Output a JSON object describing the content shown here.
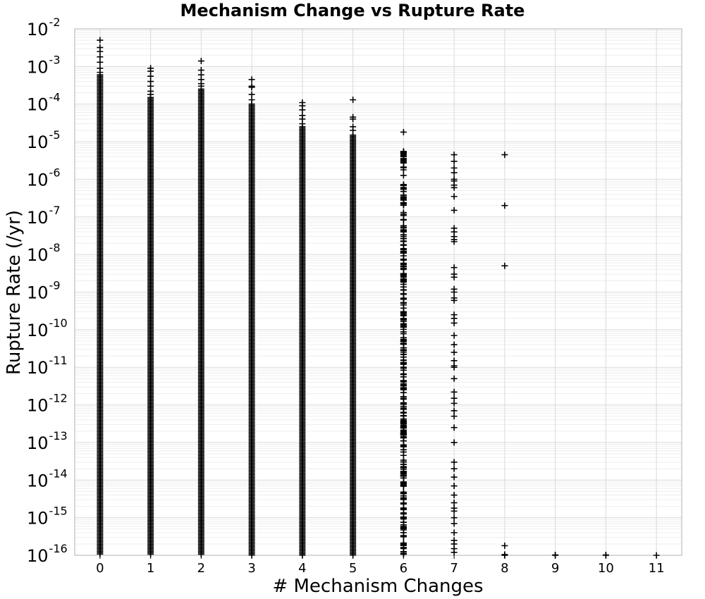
{
  "chart_data": {
    "type": "scatter",
    "title": "Mechanism Change vs Rupture Rate",
    "xlabel": "# Mechanism Changes",
    "ylabel": "Rupture Rate (/yr)",
    "xlim": [
      -0.5,
      11.5
    ],
    "ylim": [
      1e-16,
      0.01
    ],
    "y_scale": "log",
    "x_ticks": [
      0,
      1,
      2,
      3,
      4,
      5,
      6,
      7,
      8,
      9,
      10,
      11
    ],
    "y_tick_labels": [
      {
        "base": "10",
        "exp": "-2"
      },
      {
        "base": "10",
        "exp": "-3"
      },
      {
        "base": "10",
        "exp": "-4"
      },
      {
        "base": "10",
        "exp": "-5"
      },
      {
        "base": "10",
        "exp": "-6"
      },
      {
        "base": "10",
        "exp": "-7"
      },
      {
        "base": "10",
        "exp": "-8"
      },
      {
        "base": "10",
        "exp": "-9"
      },
      {
        "base": "10",
        "exp": "-10"
      },
      {
        "base": "10",
        "exp": "-11"
      },
      {
        "base": "10",
        "exp": "-12"
      },
      {
        "base": "10",
        "exp": "-13"
      },
      {
        "base": "10",
        "exp": "-14"
      },
      {
        "base": "10",
        "exp": "-15"
      },
      {
        "base": "10",
        "exp": "-16"
      }
    ],
    "grid": true,
    "marker": "plus",
    "marker_color": "#000000",
    "columns": [
      {
        "x": 0,
        "dense_range": [
          1e-16,
          0.0006
        ],
        "outliers": [
          0.005,
          0.0032,
          0.0025,
          0.0018,
          0.0013,
          0.0009,
          0.0007
        ]
      },
      {
        "x": 1,
        "dense_range": [
          1e-16,
          0.00015
        ],
        "outliers": [
          0.0009,
          0.00075,
          0.00055,
          0.0004,
          0.0003,
          0.00022,
          0.00018
        ]
      },
      {
        "x": 2,
        "dense_range": [
          1e-16,
          0.00025
        ],
        "outliers": [
          0.0014,
          0.0008,
          0.0006,
          0.00045,
          0.00035,
          0.0003
        ]
      },
      {
        "x": 3,
        "dense_range": [
          1e-16,
          0.0001
        ],
        "outliers": [
          0.00045,
          0.0003,
          0.00028,
          0.00018,
          0.00013
        ]
      },
      {
        "x": 4,
        "dense_range": [
          1e-16,
          2.5e-05
        ],
        "outliers": [
          0.00011,
          9e-05,
          7e-05,
          5e-05,
          4e-05,
          3e-05
        ]
      },
      {
        "x": 5,
        "dense_range": [
          1e-16,
          1.5e-05
        ],
        "outliers": [
          0.00013,
          4.5e-05,
          4e-05,
          2.5e-05,
          2e-05
        ]
      },
      {
        "x": 6,
        "sparse_range": [
          1e-16,
          6e-06
        ],
        "count": 320,
        "outliers": [
          1.8e-05,
          5.5e-06,
          4.5e-06,
          4e-06,
          3e-06
        ]
      },
      {
        "x": 7,
        "values": [
          4.5e-06,
          3e-06,
          2e-06,
          1.5e-06,
          1e-06,
          9e-07,
          7e-07,
          6e-07,
          3.5e-07,
          1.5e-07,
          5e-08,
          4e-08,
          3e-08,
          2.5e-08,
          2.2e-08,
          4.5e-09,
          3e-09,
          2.5e-09,
          1.2e-09,
          1e-09,
          7e-10,
          6e-10,
          2.5e-10,
          2e-10,
          1.5e-10,
          7e-11,
          4e-11,
          2.5e-11,
          1.5e-11,
          1.1e-11,
          1e-11,
          5e-12,
          2.2e-12,
          1.5e-12,
          1.1e-12,
          7e-13,
          5e-13,
          2.5e-13,
          1e-13,
          3e-14,
          2e-14,
          1.2e-14,
          7e-15,
          4e-15,
          2.5e-15,
          1.8e-15,
          1.5e-15,
          1e-15,
          7e-16,
          4e-16,
          2.5e-16,
          2e-16,
          1.5e-16,
          1.2e-16
        ]
      },
      {
        "x": 8,
        "values": [
          4.5e-06,
          2e-07,
          5e-09,
          1.8e-16,
          1.05e-16,
          1e-16
        ]
      },
      {
        "x": 9,
        "values": [
          1.02e-16,
          1e-16
        ]
      },
      {
        "x": 10,
        "values": [
          1.02e-16,
          1e-16
        ]
      },
      {
        "x": 11,
        "values": [
          1e-16
        ]
      }
    ]
  }
}
